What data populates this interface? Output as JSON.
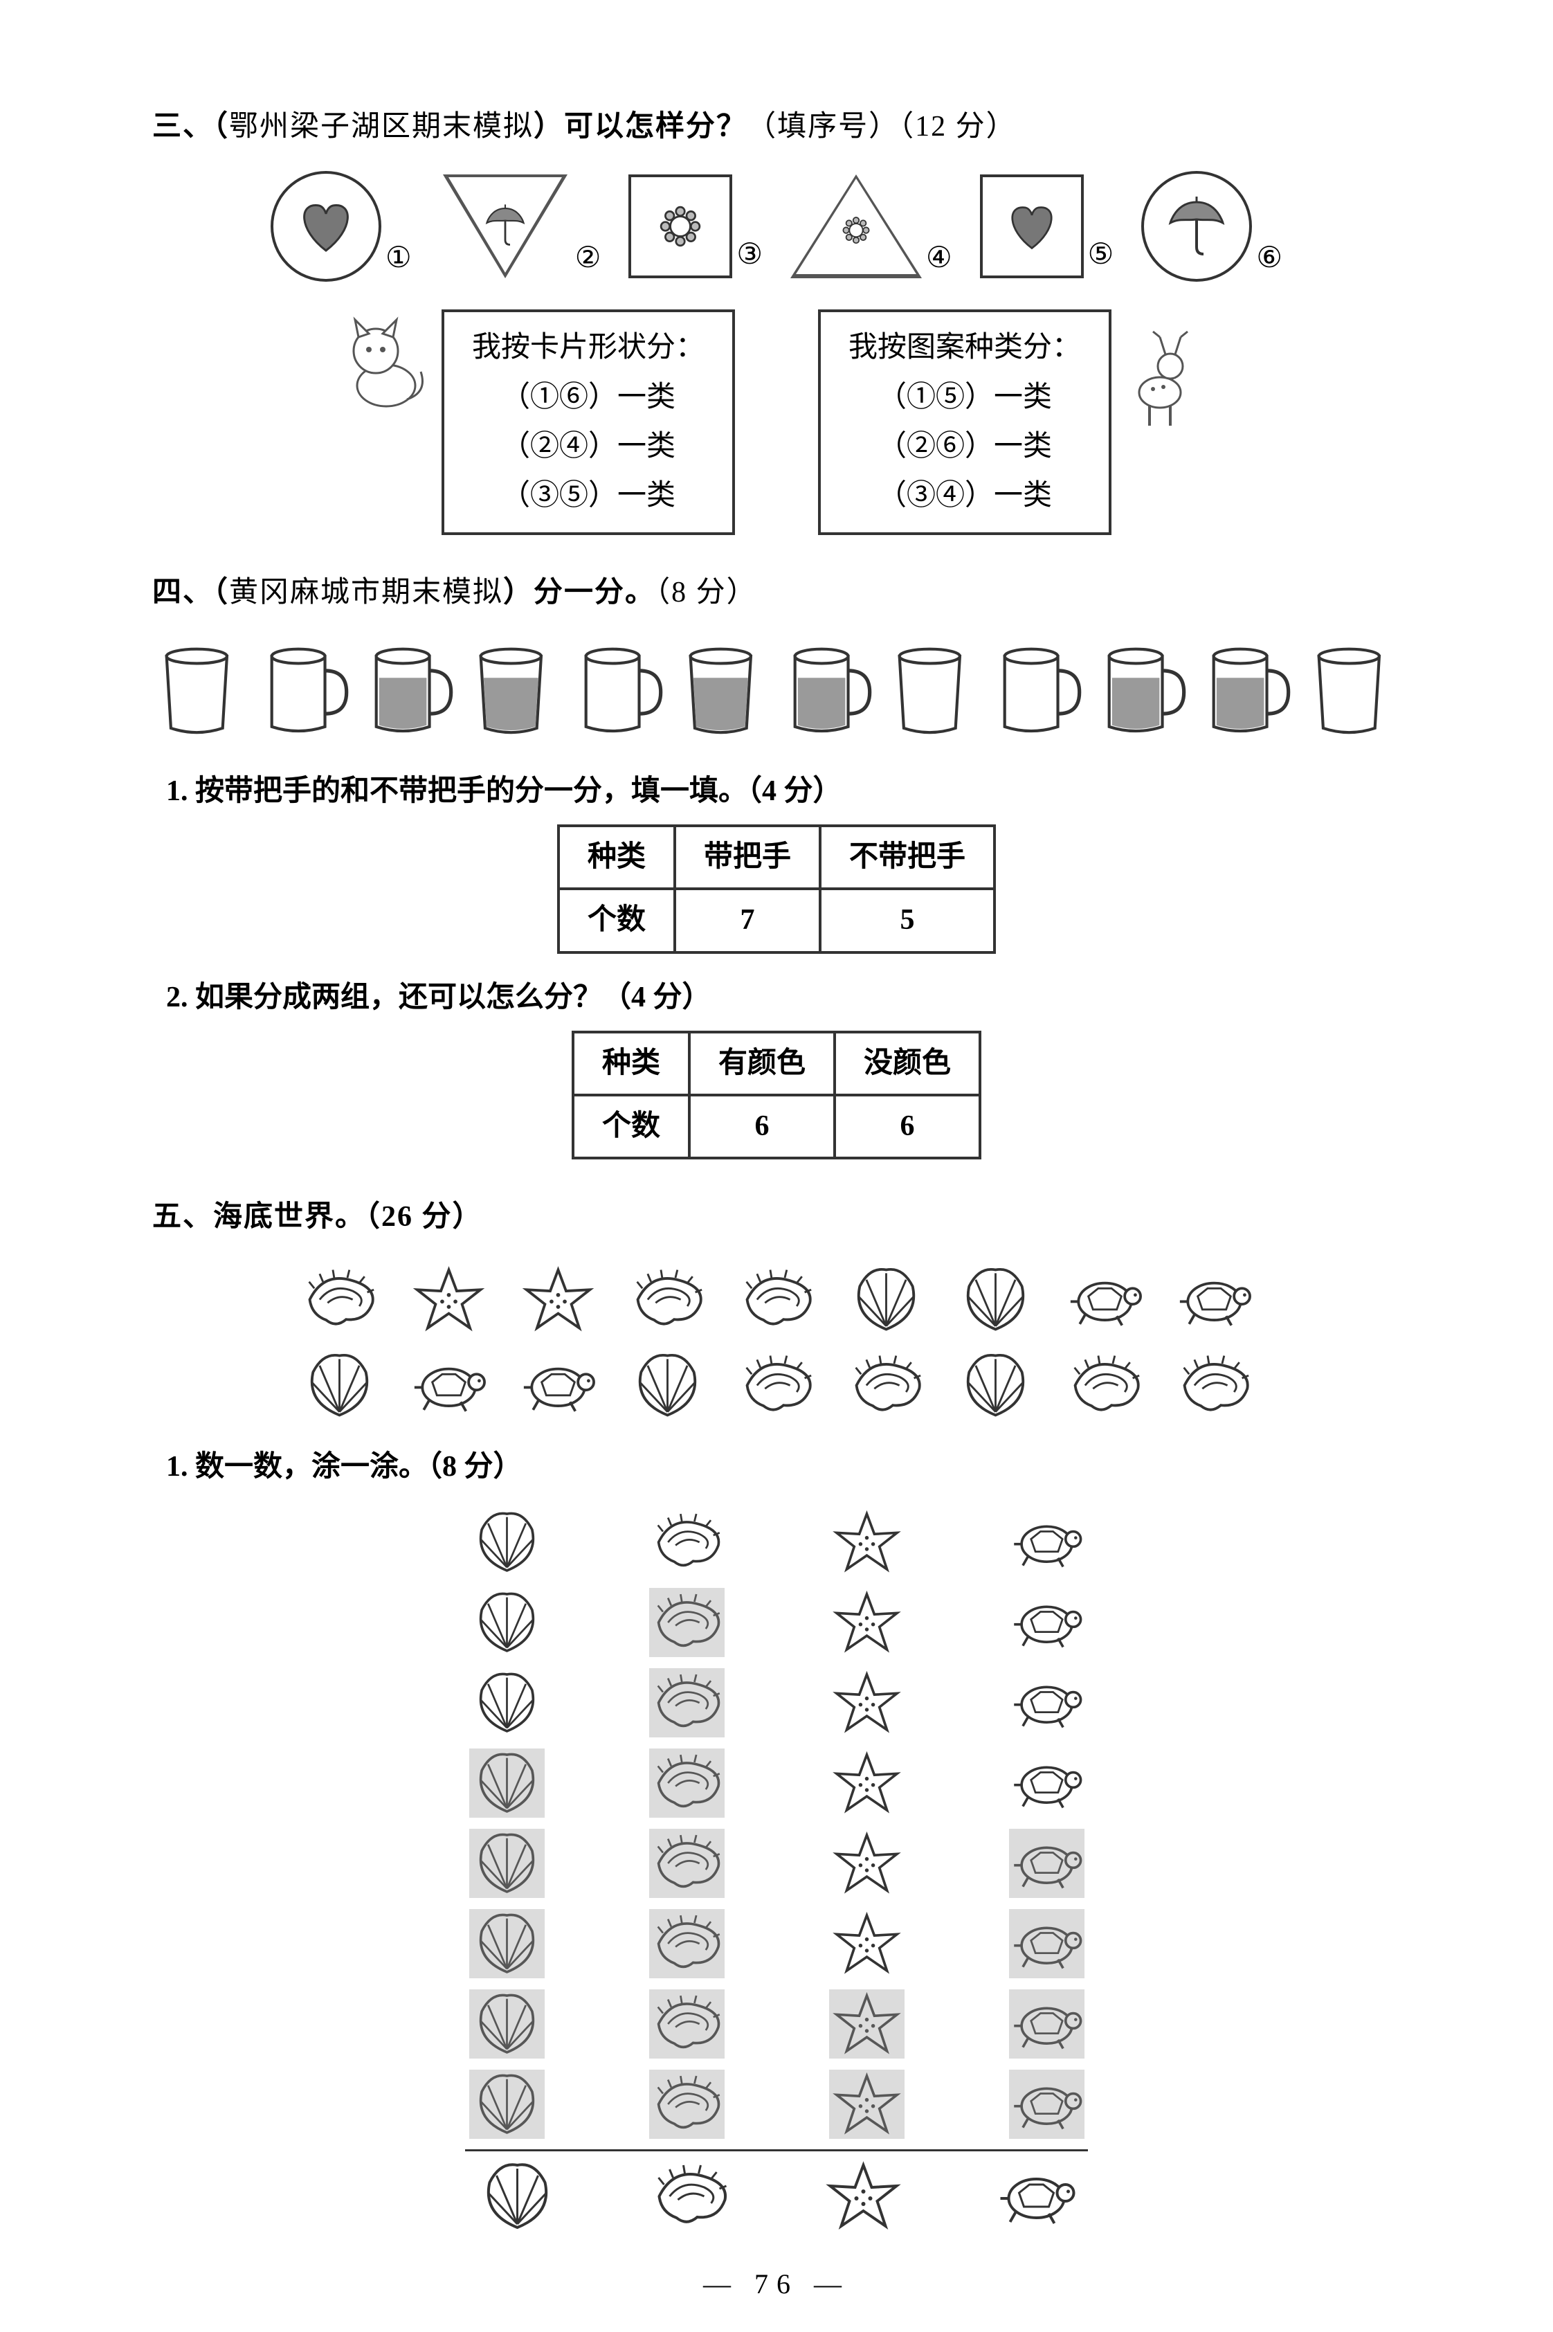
{
  "q3": {
    "title_prefix": "三、（",
    "source": "鄂州梁子湖区期末模拟",
    "title_mid": "）",
    "bold_q": "可以怎样分？",
    "points": "（填序号）（12 分）",
    "nums": [
      "①",
      "②",
      "③",
      "④",
      "⑤",
      "⑥"
    ],
    "box1": {
      "title": "我按卡片形状分：",
      "l1": "（①⑥）一类",
      "l2": "（②④）一类",
      "l3": "（③⑤）一类"
    },
    "box2": {
      "title": "我按图案种类分：",
      "l1": "（①⑤）一类",
      "l2": "（②⑥）一类",
      "l3": "（③④）一类"
    }
  },
  "q4": {
    "title_prefix": "四、（",
    "source": "黄冈麻城市期末模拟",
    "title_mid": "）",
    "bold_q": "分一分。",
    "points": "（8 分）",
    "sub1": "1. 按带把手的和不带把手的分一分，填一填。（4 分）",
    "sub2": "2. 如果分成两组，还可以怎么分？（4 分）",
    "table1": {
      "h1": "种类",
      "h2": "带把手",
      "h3": "不带把手",
      "r1": "个数",
      "v1": "7",
      "v2": "5"
    },
    "table2": {
      "h1": "种类",
      "h2": "有颜色",
      "h3": "没颜色",
      "r1": "个数",
      "v1": "6",
      "v2": "6"
    },
    "cups": [
      {
        "handle": false,
        "filled": false
      },
      {
        "handle": true,
        "filled": false
      },
      {
        "handle": true,
        "filled": true
      },
      {
        "handle": false,
        "filled": true
      },
      {
        "handle": true,
        "filled": false
      },
      {
        "handle": false,
        "filled": true
      },
      {
        "handle": true,
        "filled": true
      },
      {
        "handle": false,
        "filled": false
      },
      {
        "handle": true,
        "filled": false
      },
      {
        "handle": true,
        "filled": true
      },
      {
        "handle": true,
        "filled": true
      },
      {
        "handle": false,
        "filled": false
      }
    ]
  },
  "q5": {
    "title": "五、海底世界。（26 分）",
    "sub1": "1. 数一数，涂一涂。（8 分）",
    "row1": [
      "conch",
      "star",
      "star",
      "conch",
      "conch",
      "shell",
      "shell",
      "turtle",
      "turtle"
    ],
    "row2": [
      "shell",
      "turtle",
      "turtle",
      "shell",
      "conch",
      "conch",
      "shell",
      "conch",
      "conch"
    ],
    "chart": {
      "shell": {
        "total": 8,
        "filled": 5
      },
      "conch": {
        "total": 8,
        "filled": 7
      },
      "star": {
        "total": 8,
        "filled": 2
      },
      "turtle": {
        "total": 8,
        "filled": 4
      }
    }
  },
  "page": "76",
  "colors": {
    "line": "#333333",
    "fill_gray": "#9a9a9a",
    "fill_dark": "#6e6e6e"
  }
}
